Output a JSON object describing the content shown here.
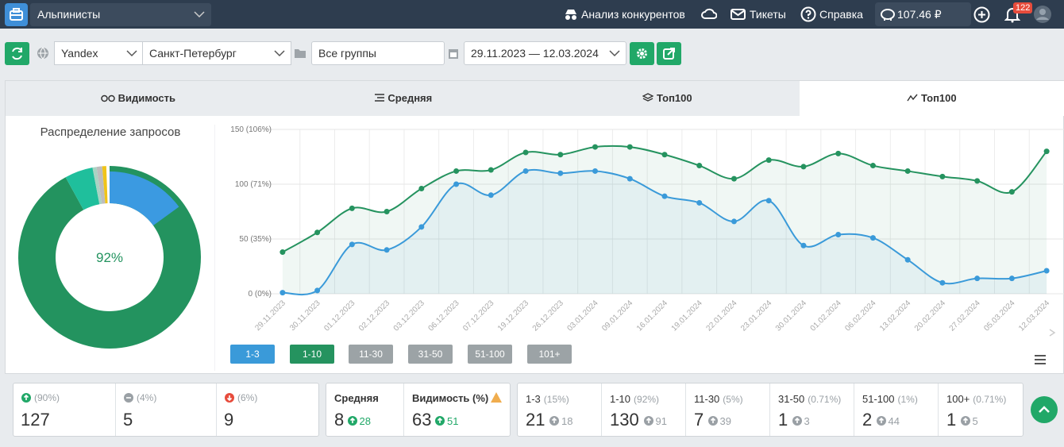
{
  "navbar": {
    "project": "Альпинисты",
    "links": [
      "Анализ конкурентов",
      "Тикеты",
      "Справка"
    ],
    "balance": "107.46 ₽",
    "notifications": 122
  },
  "toolbar": {
    "search_engine": "Yandex",
    "region": "Санкт-Петербург",
    "group": "Все группы",
    "date_range": "29.11.2023 — 12.03.2024"
  },
  "tabs": [
    "Видимость",
    "Средняя",
    "Топ100",
    "Топ100"
  ],
  "chart_data": [
    {
      "type": "donut",
      "title": "Распределение запросов",
      "center_label": "92%",
      "values": [
        92,
        5,
        0.71,
        1,
        0.71
      ],
      "colors": [
        "#23935f",
        "#1fbf9c",
        "#a9d3c3",
        "#bdbdbd",
        "#f0c419"
      ],
      "overlay": {
        "value": 15,
        "color": "#3b9ae1"
      }
    },
    {
      "type": "line",
      "x": [
        "29.11.2023",
        "30.11.2023",
        "01.12.2023",
        "02.12.2023",
        "03.12.2023",
        "06.12.2023",
        "07.12.2023",
        "19.12.2023",
        "26.12.2023",
        "03.01.2024",
        "09.01.2024",
        "16.01.2024",
        "19.01.2024",
        "22.01.2024",
        "23.01.2024",
        "30.01.2024",
        "01.02.2024",
        "06.02.2024",
        "13.02.2024",
        "20.02.2024",
        "27.02.2024",
        "05.03.2024",
        "12.03.2024"
      ],
      "series": [
        {
          "name": "1-3",
          "color": "#3a9ad9",
          "values": [
            1,
            3,
            45,
            40,
            61,
            100,
            90,
            112,
            110,
            112,
            105,
            89,
            83,
            66,
            85,
            44,
            54,
            51,
            31,
            10,
            14,
            14,
            21
          ]
        },
        {
          "name": "1-10",
          "color": "#25935f",
          "values": [
            38,
            56,
            78,
            75,
            96,
            112,
            113,
            129,
            127,
            134,
            134,
            127,
            117,
            105,
            122,
            116,
            128,
            117,
            112,
            107,
            103,
            93,
            130
          ]
        }
      ],
      "inactive_series": [
        "11-30",
        "31-50",
        "51-100",
        "101+"
      ],
      "ylim": [
        0,
        150
      ],
      "yticks": [
        {
          "value": 0,
          "label": "0 (0%)"
        },
        {
          "value": 50,
          "label": "50 (35%)"
        },
        {
          "value": 100,
          "label": "100 (71%)"
        },
        {
          "value": 150,
          "label": "150 (106%)"
        }
      ],
      "grid": true
    }
  ],
  "summary": {
    "positions": [
      {
        "percent": "(90%)",
        "value": 127,
        "trend": "up"
      },
      {
        "percent": "(4%)",
        "value": 5,
        "trend": "same"
      },
      {
        "percent": "(6%)",
        "value": 9,
        "trend": "down"
      }
    ],
    "metrics": [
      {
        "label": "Средняя",
        "value": 8,
        "change": 28
      },
      {
        "label": "Видимость (%)",
        "value": 63,
        "change": 51
      }
    ],
    "ranges": [
      {
        "label": "1-3",
        "percent": "(15%)",
        "value": 21,
        "change": 18
      },
      {
        "label": "1-10",
        "percent": "(92%)",
        "value": 130,
        "change": 91
      },
      {
        "label": "11-30",
        "percent": "(5%)",
        "value": 7,
        "change": 39
      },
      {
        "label": "31-50",
        "percent": "(0.71%)",
        "value": 1,
        "change": 3
      },
      {
        "label": "51-100",
        "percent": "(1%)",
        "value": 2,
        "change": 44
      },
      {
        "label": "100+",
        "percent": "(0.71%)",
        "value": 1,
        "change": 5
      }
    ]
  }
}
